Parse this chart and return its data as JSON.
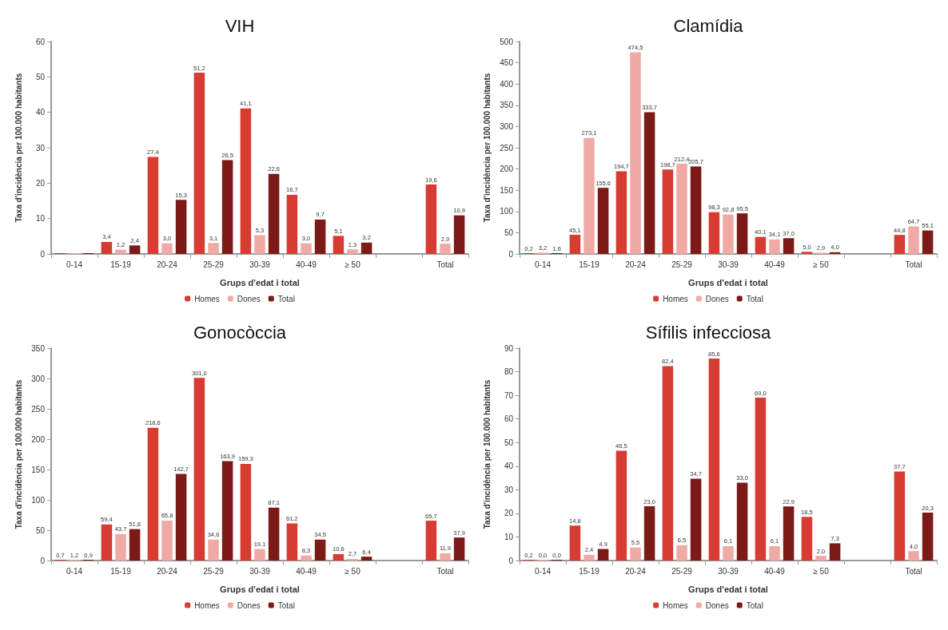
{
  "chart_data": [
    {
      "type": "bar",
      "title": "VIH",
      "xlabel": "Grups d'edat i total",
      "ylabel": "Taxa d'incidència per 100.000 habitants",
      "categories": [
        "0-14",
        "15-19",
        "20-24",
        "25-29",
        "30-39",
        "40-49",
        "≥ 50",
        null,
        "Total"
      ],
      "ylim": [
        0,
        60
      ],
      "yticks": [
        0,
        10,
        20,
        30,
        40,
        50,
        60
      ],
      "grid": false,
      "legend": "bottom",
      "series": [
        {
          "name": "Homes",
          "color": "#d63c31",
          "values": [
            0,
            3.4,
            27.4,
            51.2,
            41.1,
            16.7,
            5.1,
            null,
            19.6
          ],
          "value_labels": [
            null,
            "3,4",
            "27,4",
            "51,2",
            "41,1",
            "16,7",
            "5,1",
            null,
            "19,6"
          ]
        },
        {
          "name": "Dones",
          "color": "#f0aaa5",
          "values": [
            0,
            1.2,
            3.0,
            3.1,
            5.3,
            3.0,
            1.3,
            null,
            2.9
          ],
          "value_labels": [
            null,
            "1,2",
            "3,0",
            "3,1",
            "5,3",
            "3,0",
            "1,3",
            null,
            "2,9"
          ]
        },
        {
          "name": "Total",
          "color": "#7b1a16",
          "values": [
            0,
            2.4,
            15.3,
            26.5,
            22.6,
            9.7,
            3.2,
            null,
            10.9
          ],
          "value_labels": [
            null,
            "2,4",
            "15,3",
            "26,5",
            "22,6",
            "9,7",
            "3,2",
            null,
            "10,9"
          ]
        }
      ]
    },
    {
      "type": "bar",
      "title": "Clamídia",
      "xlabel": "Grups d'edat i total",
      "ylabel": "Taxa d'incidència per 100.000 habitants",
      "categories": [
        "0-14",
        "15-19",
        "20-24",
        "25-29",
        "30-39",
        "40-49",
        "≥ 50",
        null,
        "Total"
      ],
      "ylim": [
        0,
        500
      ],
      "yticks": [
        0,
        50,
        100,
        150,
        200,
        250,
        300,
        350,
        400,
        450,
        500
      ],
      "grid": false,
      "legend": "bottom",
      "series": [
        {
          "name": "Homes",
          "color": "#d63c31",
          "values": [
            0.2,
            45.1,
            194.7,
            198.7,
            98.3,
            40.1,
            5.0,
            null,
            44.8
          ],
          "value_labels": [
            "0,2",
            "45,1",
            "194,7",
            "198,7",
            "98,3",
            "40,1",
            "5,0",
            null,
            "44,8"
          ]
        },
        {
          "name": "Dones",
          "color": "#f0aaa5",
          "values": [
            3.2,
            273.1,
            474.5,
            212.4,
            92.8,
            34.1,
            2.9,
            null,
            64.7
          ],
          "value_labels": [
            "3,2",
            "273,1",
            "474,5",
            "212,4",
            "92,8",
            "34,1",
            "2,9",
            null,
            "64,7"
          ]
        },
        {
          "name": "Total",
          "color": "#7b1a16",
          "values": [
            1.6,
            155.6,
            333.7,
            205.7,
            95.5,
            37.0,
            4.0,
            null,
            55.1
          ],
          "value_labels": [
            "1,6",
            "155,6",
            "333,7",
            "205,7",
            "95,5",
            "37,0",
            "4,0",
            null,
            "55,1"
          ]
        }
      ]
    },
    {
      "type": "bar",
      "title": "Gonocòccia",
      "xlabel": "Grups d'edat i total",
      "ylabel": "Taxa d'incidència per 100.000 habitants",
      "categories": [
        "0-14",
        "15-19",
        "20-24",
        "25-29",
        "30-39",
        "40-49",
        "≥ 50",
        null,
        "Total"
      ],
      "ylim": [
        0,
        350
      ],
      "yticks": [
        0,
        50,
        100,
        150,
        200,
        250,
        300,
        350
      ],
      "grid": false,
      "legend": "bottom",
      "series": [
        {
          "name": "Homes",
          "color": "#d63c31",
          "values": [
            0.7,
            59.4,
            218.6,
            301.0,
            159.3,
            61.2,
            10.6,
            null,
            65.7
          ],
          "value_labels": [
            "0,7",
            "59,4",
            "218,6",
            "301,0",
            "159,3",
            "61,2",
            "10,6",
            null,
            "65,7"
          ]
        },
        {
          "name": "Dones",
          "color": "#f0aaa5",
          "values": [
            1.2,
            43.7,
            65.8,
            34.6,
            19.1,
            8.3,
            2.7,
            null,
            11.9
          ],
          "value_labels": [
            "1,2",
            "43,7",
            "65,8",
            "34,6",
            "19,1",
            "8,3",
            "2,7",
            null,
            "11,9"
          ]
        },
        {
          "name": "Total",
          "color": "#7b1a16",
          "values": [
            0.9,
            51.8,
            142.7,
            163.9,
            87.1,
            34.5,
            6.4,
            null,
            37.9
          ],
          "value_labels": [
            "0,9",
            "51,8",
            "142,7",
            "163,9",
            "87,1",
            "34,5",
            "6,4",
            null,
            "37,9"
          ]
        }
      ]
    },
    {
      "type": "bar",
      "title": "Sífilis infecciosa",
      "xlabel": "Grups d'edat i total",
      "ylabel": "Taxa d'incidència per 100.000 habitants",
      "categories": [
        "0-14",
        "15-19",
        "20-24",
        "25-29",
        "30-39",
        "40-49",
        "≥ 50",
        null,
        "Total"
      ],
      "ylim": [
        0,
        90
      ],
      "yticks": [
        0,
        10,
        20,
        30,
        40,
        50,
        60,
        70,
        80,
        90
      ],
      "grid": false,
      "legend": "bottom",
      "series": [
        {
          "name": "Homes",
          "color": "#d63c31",
          "values": [
            0.2,
            14.8,
            46.5,
            82.4,
            85.6,
            69.0,
            18.5,
            null,
            37.7
          ],
          "value_labels": [
            "0,2",
            "14,8",
            "46,5",
            "82,4",
            "85,6",
            "69,0",
            "18,5",
            null,
            "37,7"
          ]
        },
        {
          "name": "Dones",
          "color": "#f0aaa5",
          "values": [
            0.0,
            2.4,
            5.5,
            6.5,
            6.1,
            6.1,
            2.0,
            null,
            4.0
          ],
          "value_labels": [
            "0,0",
            "2,4",
            "5,5",
            "6,5",
            "6,1",
            "6,1",
            "2,0",
            null,
            "4,0"
          ]
        },
        {
          "name": "Total",
          "color": "#7b1a16",
          "values": [
            0.0,
            4.9,
            23.0,
            34.7,
            33.0,
            22.9,
            7.3,
            null,
            20.3
          ],
          "value_labels": [
            "0,0",
            "4,9",
            "23,0",
            "34,7",
            "33,0",
            "22,9",
            "7,3",
            null,
            "20,3"
          ]
        }
      ]
    }
  ]
}
